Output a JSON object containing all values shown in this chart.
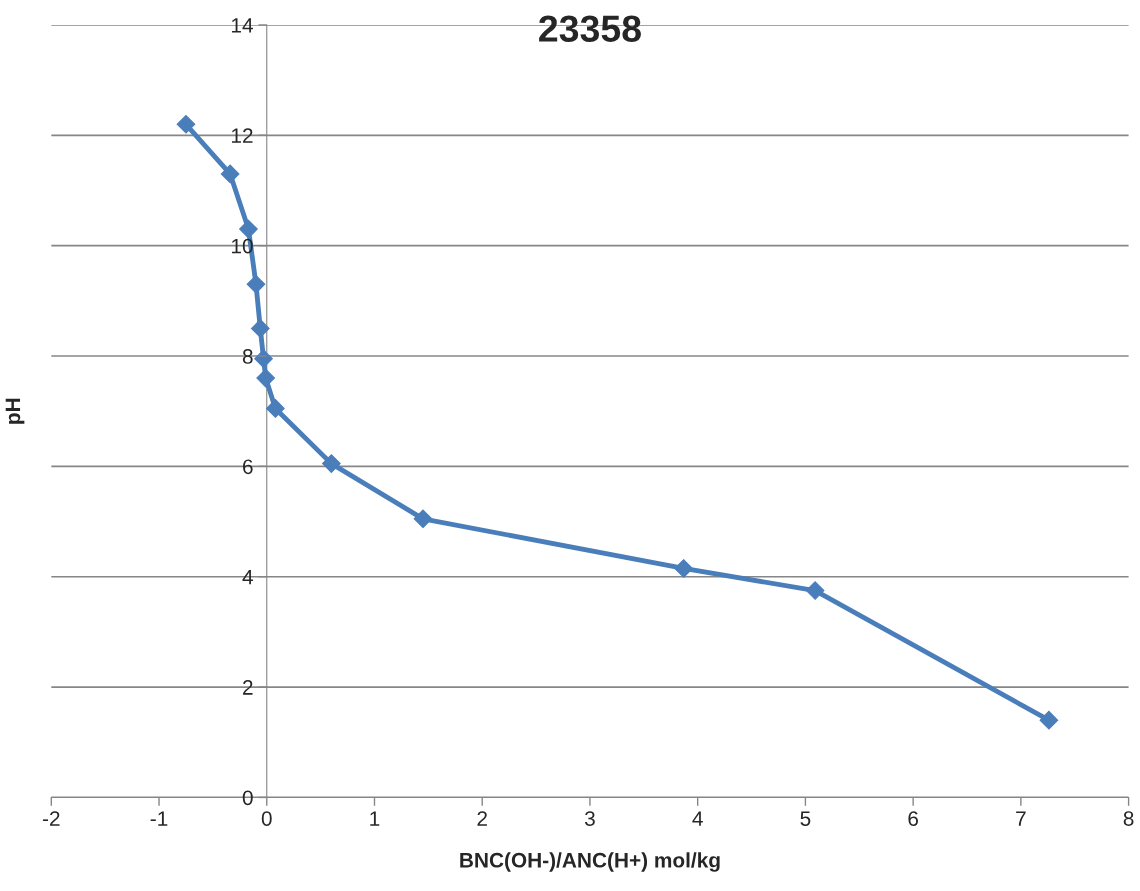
{
  "chart_data": {
    "type": "line",
    "title": "23358",
    "xlabel": "BNC(OH-)/ANC(H+) mol/kg",
    "ylabel": "pH",
    "series": [
      {
        "color": "#4a7ebb",
        "x": [
          -0.75,
          -0.34,
          -0.17,
          -0.1,
          -0.06,
          -0.03,
          -0.01,
          0.08,
          0.6,
          1.45,
          3.87,
          5.09,
          7.26
        ],
        "values": [
          12.2,
          11.3,
          10.3,
          9.3,
          8.5,
          7.95,
          7.6,
          7.05,
          6.05,
          5.05,
          4.15,
          3.75,
          1.4
        ]
      }
    ],
    "xlim": [
      -2,
      8
    ],
    "xticks": [
      -2,
      -1,
      0,
      1,
      2,
      3,
      4,
      5,
      6,
      7,
      8
    ],
    "ylim": [
      0,
      14
    ],
    "yticks": [
      0,
      2,
      4,
      6,
      8,
      10,
      12,
      14
    ],
    "grid": "y",
    "marker": "diamond",
    "line_style": "solid"
  }
}
